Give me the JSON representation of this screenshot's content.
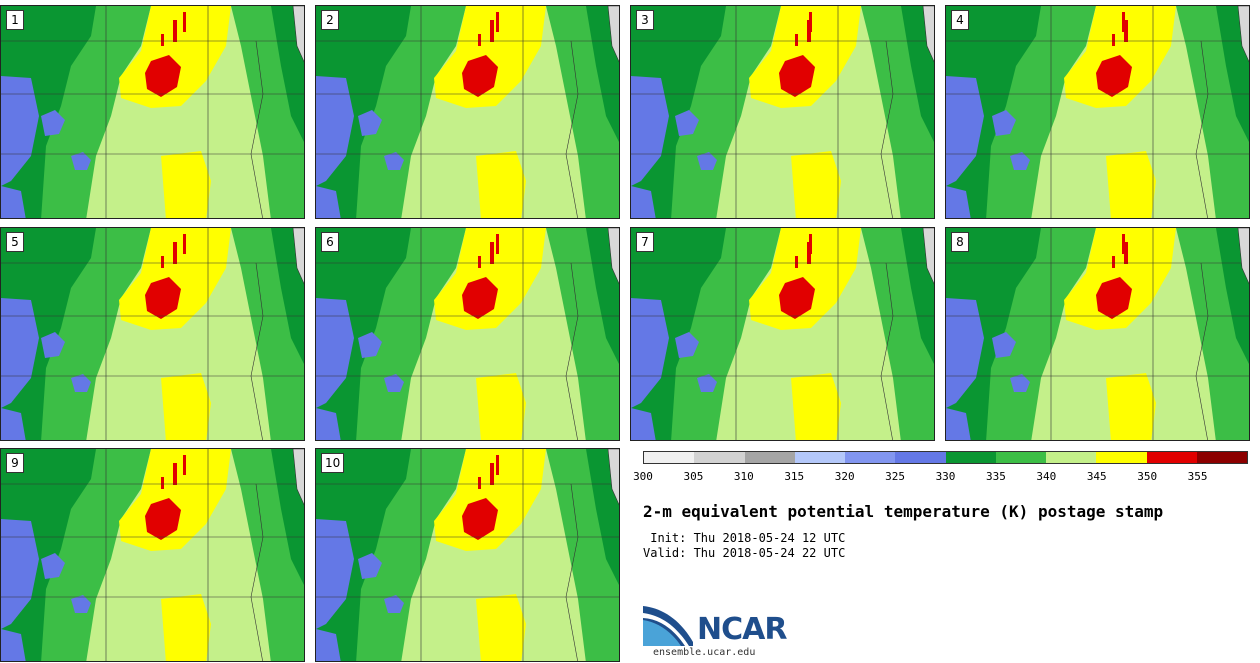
{
  "panels": [
    {
      "label": "1"
    },
    {
      "label": "2"
    },
    {
      "label": "3"
    },
    {
      "label": "4"
    },
    {
      "label": "5"
    },
    {
      "label": "6"
    },
    {
      "label": "7"
    },
    {
      "label": "8"
    },
    {
      "label": "9"
    },
    {
      "label": "10"
    }
  ],
  "colorbar": {
    "colors": [
      "#f0f0f0",
      "#d2d2d2",
      "#a5a5a5",
      "#b4c8fa",
      "#8296f0",
      "#6478e6",
      "#0a9632",
      "#3cbe46",
      "#c4f08a",
      "#ffff00",
      "#e10000",
      "#8c0000"
    ],
    "ticks": [
      "300",
      "305",
      "310",
      "315",
      "320",
      "325",
      "330",
      "335",
      "340",
      "345",
      "350",
      "355"
    ]
  },
  "title": "2-m equivalent potential temperature (K) postage stamp",
  "init": " Init: Thu 2018-05-24 12 UTC",
  "valid": "Valid: Thu 2018-05-24 22 UTC",
  "logo": {
    "word": "NCAR",
    "url": "ensemble.ucar.edu"
  }
}
